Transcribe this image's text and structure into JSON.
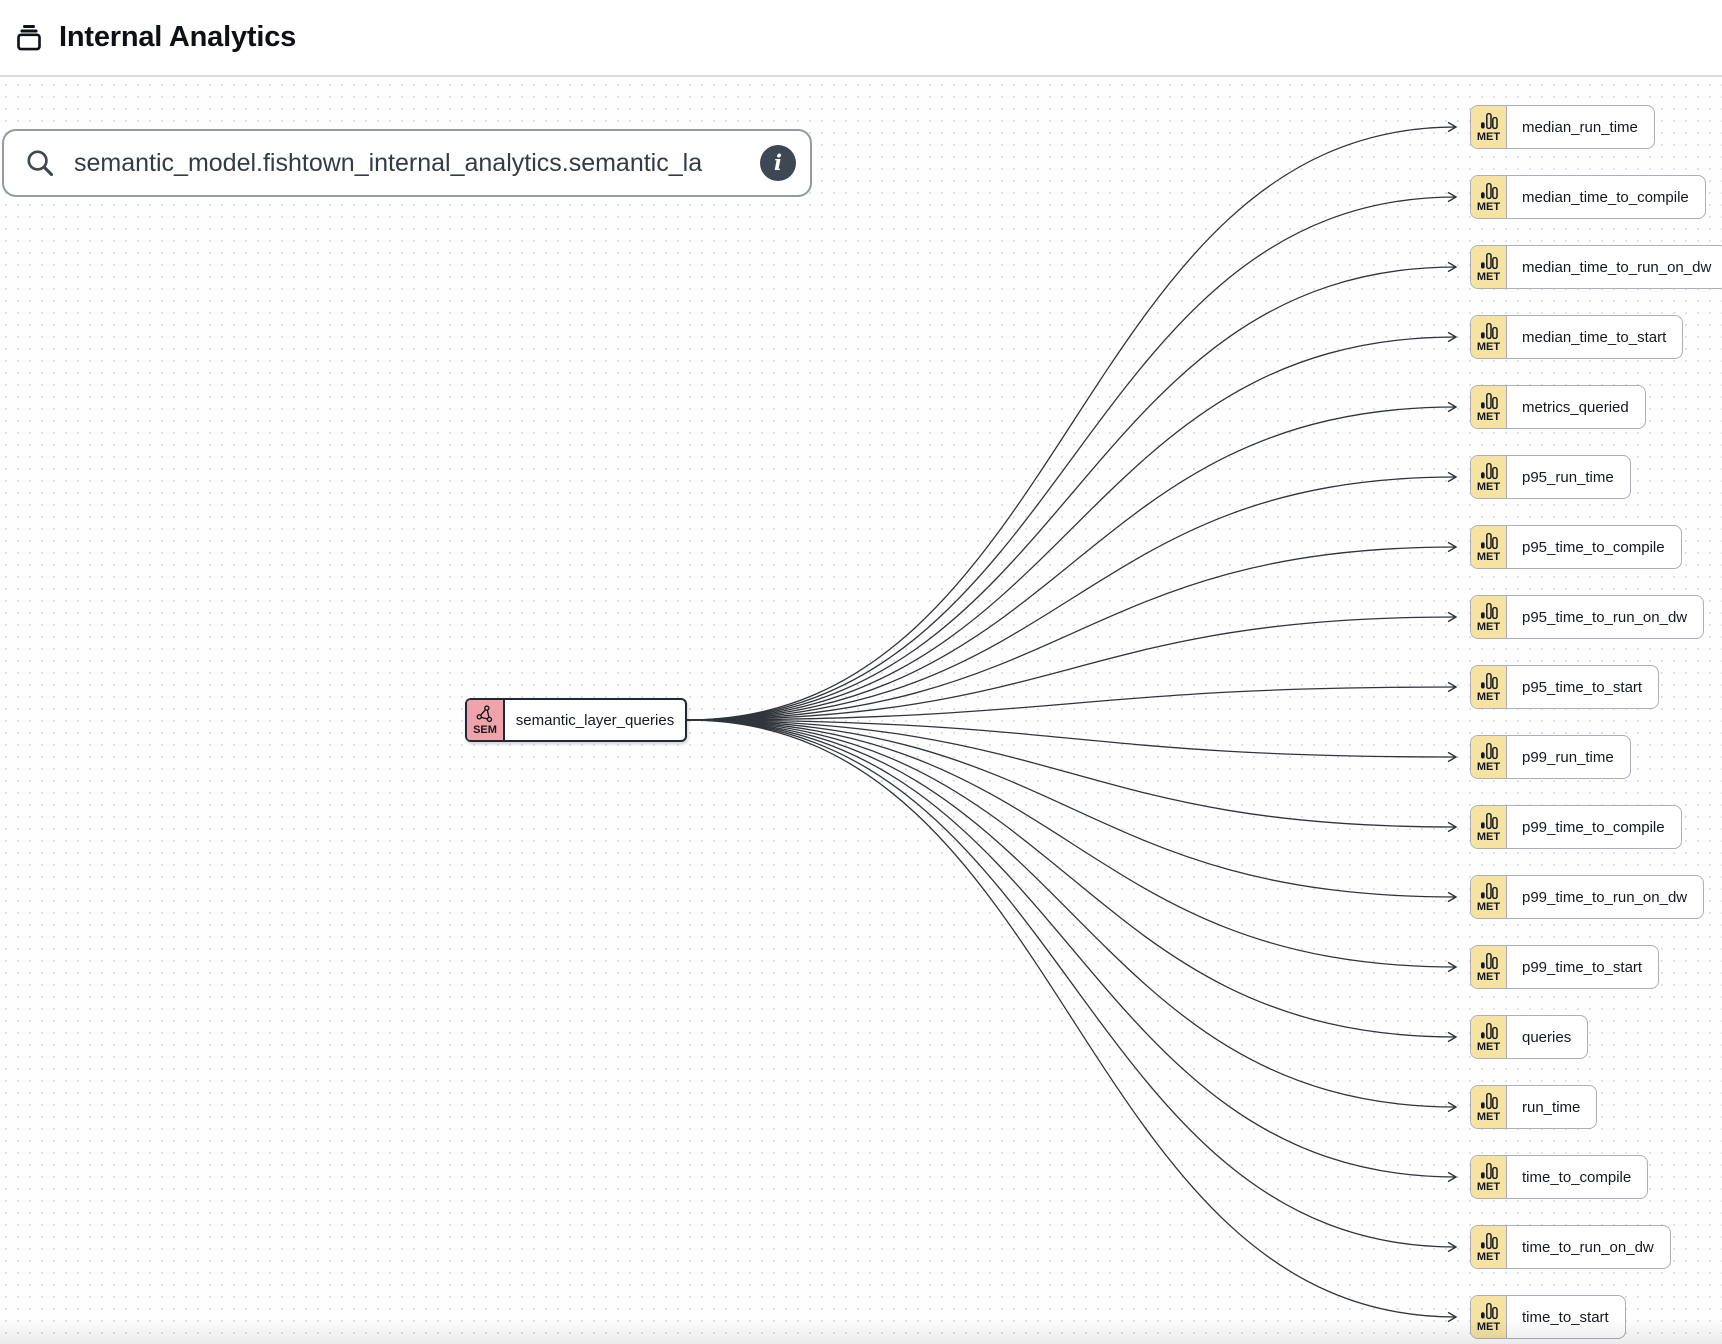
{
  "header": {
    "title": "Internal Analytics",
    "icon": "archive-icon"
  },
  "toolbar": {
    "search_icon": "search-icon",
    "search_value": "semantic_model.fishtown_internal_analytics.semantic_la",
    "info_icon": "info-icon",
    "info_glyph": "i"
  },
  "graph": {
    "source": {
      "type": "semantic_model",
      "badge": "SEM",
      "label": "semantic_layer_queries",
      "icon": "network-triangle-icon"
    },
    "metrics_badge": "MET",
    "metrics_icon": "bar-chart-icon",
    "metrics": [
      "median_run_time",
      "median_time_to_compile",
      "median_time_to_run_on_dw",
      "median_time_to_start",
      "metrics_queried",
      "p95_run_time",
      "p95_time_to_compile",
      "p95_time_to_run_on_dw",
      "p95_time_to_start",
      "p99_run_time",
      "p99_time_to_compile",
      "p99_time_to_run_on_dw",
      "p99_time_to_start",
      "queries",
      "run_time",
      "time_to_compile",
      "time_to_run_on_dw",
      "time_to_start"
    ],
    "colors": {
      "sem_badge": "#F1A3AB",
      "sem_border": "#212938",
      "met_badge": "#F6E3A2",
      "met_border": "#ABB0B8",
      "edge": "#30353C",
      "info_button": "#3E4754"
    }
  }
}
